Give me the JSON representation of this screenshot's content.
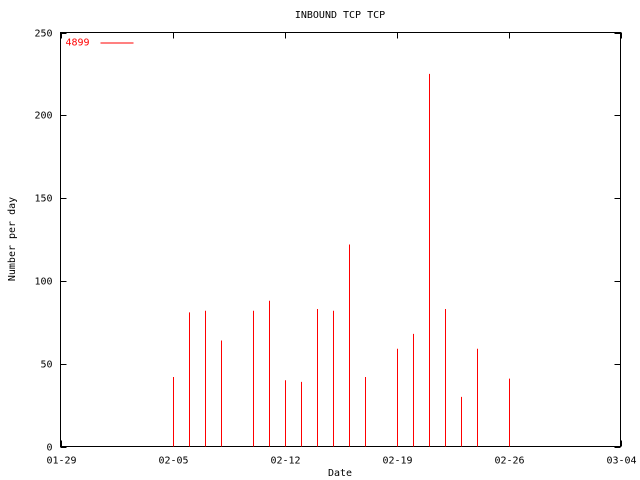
{
  "chart_data": {
    "type": "impulse",
    "title": "INBOUND TCP TCP",
    "x_label": "Date",
    "y_label": "Number per day",
    "x": [
      "02-05",
      "02-06",
      "02-07",
      "02-08",
      "02-10",
      "02-11",
      "02-12",
      "02-13",
      "02-14",
      "02-15",
      "02-16",
      "02-17",
      "02-19",
      "02-20",
      "02-21",
      "02-22",
      "02-23",
      "02-24",
      "02-26"
    ],
    "series": [
      {
        "name": "4899",
        "color": "#ff0000",
        "values": [
          42,
          81,
          82,
          64,
          82,
          88,
          40,
          39,
          83,
          82,
          122,
          42,
          59,
          68,
          225,
          83,
          30,
          59,
          41
        ]
      }
    ],
    "xlim": [
      "01-29",
      "03-04"
    ],
    "xticks": [
      "01-29",
      "02-05",
      "02-12",
      "02-19",
      "02-26",
      "03-04"
    ],
    "ylim": [
      0,
      250
    ],
    "yticks": [
      0,
      50,
      100,
      150,
      200,
      250
    ],
    "legend": "top-left"
  }
}
